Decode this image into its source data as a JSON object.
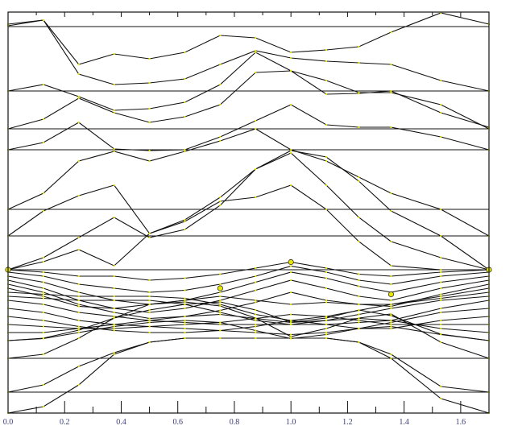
{
  "chart_data": {
    "type": "line",
    "title": "",
    "xlabel": "",
    "ylabel": "",
    "xlim": [
      0,
      1.7
    ],
    "ylim": [
      0,
      99.6
    ],
    "grid": false,
    "x_ticks": [
      "0.0",
      "0.2",
      "0.4",
      "0.6",
      "0.8",
      "1.0",
      "1.2",
      "1.4",
      "1.6"
    ],
    "x_tick_values": [
      0,
      0.2,
      0.4,
      0.6,
      0.8,
      1.0,
      1.2,
      1.4,
      1.6
    ],
    "x_minor_tick_values": [
      0.1,
      0.3,
      0.5,
      0.7,
      0.9,
      1.1,
      1.3,
      1.5,
      1.7
    ],
    "y_ticks": [],
    "line_color": "#111111",
    "marker_color": "#e6e600",
    "k_points": [
      0,
      0.125,
      0.25,
      0.375,
      0.5,
      0.625,
      0.75,
      0.875,
      1.0,
      1.125,
      1.24,
      1.354,
      1.53,
      1.7
    ],
    "flat_levels": [
      96,
      80,
      70.6,
      65.4,
      50.6,
      44,
      35.6,
      13.6,
      5.2
    ],
    "series": [
      {
        "values": [
          96.2,
          97.6,
          86.6,
          89.2,
          88,
          89.6,
          93.8,
          93.2,
          89.6,
          90.2,
          91,
          94.6,
          99.4,
          96.6
        ]
      },
      {
        "values": [
          96.6,
          97.6,
          84.2,
          81.6,
          82,
          83,
          86.6,
          90,
          88.2,
          87.4,
          87,
          86.6,
          82.6,
          80
        ]
      },
      {
        "values": [
          80,
          81.6,
          78.6,
          75.2,
          75.6,
          77.2,
          81.6,
          89.6,
          85,
          79.2,
          79.4,
          80,
          74.6,
          71
        ]
      },
      {
        "values": [
          70.6,
          73,
          78.2,
          74.6,
          72.2,
          73.6,
          76.6,
          84.6,
          85,
          82.6,
          79.6,
          79.6,
          76.6,
          70.6
        ]
      },
      {
        "values": [
          65.4,
          67.2,
          72.2,
          65.6,
          65.2,
          65.4,
          68.6,
          72.6,
          76.6,
          71.6,
          71,
          71,
          68.6,
          65.4
        ]
      },
      {
        "values": [
          50.6,
          54.6,
          62.6,
          65,
          62.6,
          65,
          67.6,
          70.6,
          65.4,
          62.6,
          58.6,
          54.6,
          50.6,
          44
        ]
      },
      {
        "values": [
          44,
          50.2,
          54,
          56.6,
          44.6,
          48,
          53.6,
          60.6,
          65.2,
          63.6,
          57.6,
          50.2,
          44,
          35.6
        ]
      },
      {
        "values": [
          35.6,
          38.6,
          43.6,
          48.6,
          43.6,
          45.6,
          51.6,
          60.6,
          64.6,
          56.6,
          48.6,
          42.6,
          38.6,
          35.6
        ]
      },
      {
        "values": [
          35.6,
          37.6,
          40.6,
          36.6,
          44.6,
          47.6,
          52.6,
          53.6,
          56.6,
          50.6,
          42.6,
          36.6,
          35.6,
          35.6
        ]
      },
      {
        "values": [
          35.6,
          35,
          34,
          34,
          33,
          33.5,
          34.5,
          36,
          37.5,
          36,
          34.5,
          34,
          35,
          35.6
        ]
      },
      {
        "values": [
          35,
          34,
          32,
          31,
          30,
          30.5,
          32,
          34,
          36.5,
          35,
          33,
          32,
          34,
          35
        ]
      },
      {
        "values": [
          34,
          32.5,
          30,
          28,
          27,
          28,
          30,
          32.5,
          35,
          33.5,
          31.5,
          30,
          32.5,
          34
        ]
      },
      {
        "values": [
          33,
          31,
          28,
          26,
          25,
          26,
          28,
          30.5,
          33,
          31,
          29,
          28,
          31,
          33
        ]
      },
      {
        "values": [
          32,
          30,
          27,
          25,
          23.5,
          24,
          25.5,
          27.5,
          30,
          28,
          27,
          26.5,
          29.5,
          32
        ]
      },
      {
        "values": [
          31,
          29,
          26.5,
          26,
          27,
          28,
          29,
          28,
          27,
          27.5,
          27,
          27,
          29,
          31
        ]
      },
      {
        "values": [
          30,
          29.5,
          29,
          29,
          29,
          28.5,
          27,
          24.5,
          23,
          24,
          25.5,
          27,
          28.5,
          30
        ]
      },
      {
        "values": [
          29,
          28.5,
          28,
          28,
          28,
          27,
          25,
          23,
          22,
          23,
          24.5,
          26,
          28,
          29
        ]
      },
      {
        "values": [
          28,
          27,
          25,
          24,
          23,
          22.5,
          22,
          22,
          22,
          22,
          22.5,
          23,
          26,
          28
        ]
      },
      {
        "values": [
          26,
          25,
          23,
          22,
          21.5,
          21,
          20.5,
          20,
          19.5,
          20,
          21,
          22.5,
          25,
          26
        ]
      },
      {
        "values": [
          24,
          23,
          21.5,
          20.5,
          20,
          20,
          20.5,
          21.5,
          23,
          22,
          21,
          21,
          23,
          24
        ]
      },
      {
        "values": [
          22,
          21.5,
          21,
          21,
          21.5,
          22,
          22.5,
          23.5,
          24.5,
          24,
          23,
          22,
          22,
          22
        ]
      },
      {
        "values": [
          20,
          20,
          21,
          22,
          23,
          24,
          24.5,
          23.5,
          22.5,
          23,
          23.5,
          23,
          21,
          20
        ]
      },
      {
        "values": [
          18,
          18.5,
          20,
          21.5,
          22.5,
          23,
          22.5,
          20.5,
          18.5,
          19.5,
          21,
          21.5,
          19.5,
          18
        ]
      },
      {
        "values": [
          18,
          18.6,
          20.6,
          23.6,
          25.6,
          27,
          27.6,
          25.6,
          22.6,
          23.6,
          25.6,
          24.2,
          19.6,
          18
        ]
      },
      {
        "values": [
          13.6,
          14.6,
          18.6,
          23.6,
          27,
          27.6,
          26.6,
          23.6,
          19,
          21,
          23.6,
          24.6,
          17.6,
          13.6
        ]
      },
      {
        "values": [
          5.2,
          7,
          11.6,
          15,
          17.6,
          18.6,
          18.6,
          18.6,
          18.6,
          18.6,
          17.6,
          14.6,
          6.6,
          5.2
        ]
      },
      {
        "values": [
          0,
          1.6,
          7,
          14.6,
          17.6,
          18.6,
          18.6,
          18.6,
          18.6,
          18.6,
          17.6,
          13.6,
          3.6,
          0
        ]
      }
    ],
    "highlight_markers": [
      {
        "x": 0,
        "y": 35.6
      },
      {
        "x": 1.0,
        "y": 37.5
      },
      {
        "x": 0.75,
        "y": 31
      },
      {
        "x": 1.354,
        "y": 29.5
      },
      {
        "x": 1.7,
        "y": 35.6
      }
    ]
  }
}
